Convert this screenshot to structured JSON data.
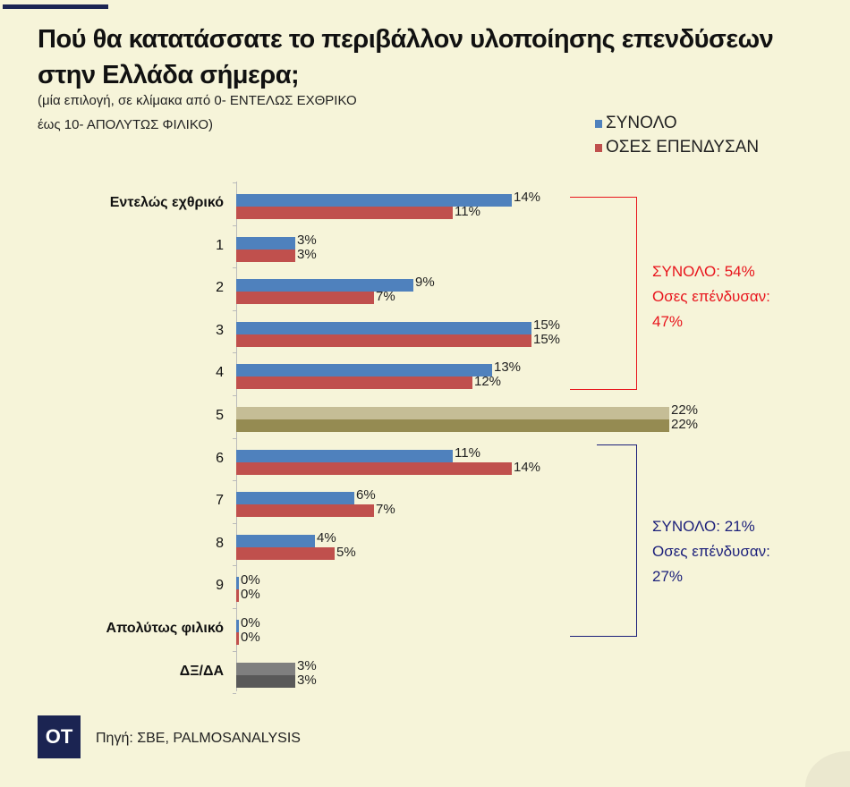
{
  "title": "Πού θα κατατάσσατε το περιβάλλον υλοποίησης επενδύσεων στην Ελλάδα σήμερα;",
  "subtitle_line1": "(μία επιλογή, σε κλίμακα από 0- ΕΝΤΕΛΩΣ ΕΧΘΡΙΚΟ",
  "subtitle_line2": "έως 10- ΑΠΟΛΥΤΩΣ ΦΙΛΙΚΟ)",
  "source": "Πηγή: ΣΒΕ, PALMOSANALYSIS",
  "logo": "OT",
  "chart_data": {
    "type": "bar",
    "orientation": "horizontal",
    "categories": [
      "Εντελώς εχθρικό",
      "1",
      "2",
      "3",
      "4",
      "5",
      "6",
      "7",
      "8",
      "9",
      "Απολύτως φιλικό",
      "ΔΞ/ΔΑ"
    ],
    "series": [
      {
        "name": "ΣΥΝΟΛΟ",
        "color": "#4f81bd",
        "values": [
          14,
          3,
          9,
          15,
          13,
          22,
          11,
          6,
          4,
          0,
          0,
          3
        ]
      },
      {
        "name": "ΟΣΕΣ ΕΠΕΝΔΥΣΑΝ",
        "color": "#c0504d",
        "values": [
          11,
          3,
          7,
          15,
          12,
          22,
          14,
          7,
          5,
          0,
          0,
          3
        ]
      }
    ],
    "special_colors": {
      "5": [
        "#c5bd96",
        "#958b52"
      ],
      "ΔΞ/ΔΑ": [
        "#7f7f7f",
        "#595959"
      ]
    },
    "value_suffix": "%",
    "legend": "top-right",
    "grid": false,
    "annotations": [
      {
        "color": "#e8141c",
        "lines": [
          "ΣΥΝΟΛΟ: 54%",
          "Οσες επένδυσαν:",
          "47%"
        ],
        "range": [
          "Εντελώς εχθρικό",
          "4"
        ]
      },
      {
        "color": "#1b1f7a",
        "lines": [
          "ΣΥΝΟΛΟ: 21%",
          "Οσες επένδυσαν:",
          "27%"
        ],
        "range": [
          "6",
          "Απολύτως φιλικό"
        ]
      }
    ]
  }
}
